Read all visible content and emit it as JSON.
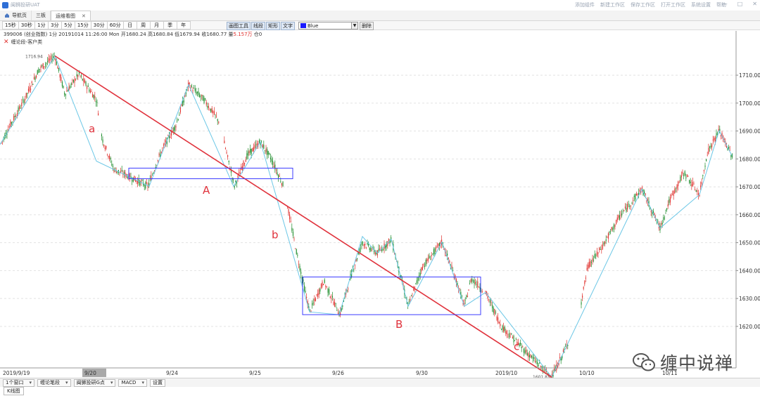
{
  "titlebar": {
    "app_title": "闽狮投研UAT",
    "menu": [
      "添加组件",
      "新建工作区",
      "保存工作区",
      "打开工作区",
      "系统设置",
      "帮助"
    ],
    "window_buttons": [
      "—",
      "□",
      "✕"
    ]
  },
  "tabs": [
    {
      "label": "导航页",
      "icon": "home-icon"
    },
    {
      "label": "三板",
      "icon": ""
    },
    {
      "label": "运维看图",
      "icon": "",
      "active": true,
      "close": "✕"
    }
  ],
  "toolbar": {
    "periods": [
      "15秒",
      "30秒",
      "1分",
      "3分",
      "5分",
      "15分",
      "30分",
      "60分",
      "日",
      "周",
      "月",
      "季",
      "年"
    ],
    "draw_tools": [
      "画图工具",
      "线段",
      "矩形",
      "文字"
    ],
    "color": {
      "label": "Blue",
      "hex": "#1a1aff"
    },
    "delete_label": "删除"
  },
  "info": {
    "text": "399006 (创业指数) 1分 20191014 11:26:00 Mon  开1680.24 高1680.84 低1679.94 收1680.77 量",
    "volume": "5.157万",
    "suffix": " 仓0"
  },
  "indicator": {
    "close_mark": "✕",
    "label": "缠论段-客户类"
  },
  "chart_data": {
    "type": "candlestick",
    "ylim": [
      1600,
      1720
    ],
    "yticks": [
      "1710.00",
      "1700.00",
      "1690.00",
      "1680.00",
      "1670.00",
      "1660.00",
      "1650.00",
      "1640.00",
      "1630.00",
      "1620.00"
    ],
    "ytick_values": [
      1710,
      1700,
      1690,
      1680,
      1670,
      1660,
      1650,
      1640,
      1630,
      1620
    ],
    "xticks": [
      "2019/9/19",
      "9/20",
      "9/24",
      "9/25",
      "9/26",
      "9/30",
      "2019/10",
      "10/10",
      "10/11"
    ],
    "high_label": "1716.94",
    "low_label": "1601.81",
    "wave_labels": [
      "a",
      "A",
      "b",
      "B",
      "c"
    ],
    "colors": {
      "up": "#e0322f",
      "down": "#1c8c2a",
      "stroke": "#6cc7e6",
      "trend": "#e0323c",
      "box": "#3c3cff"
    },
    "price_path": [
      [
        0,
        1684.8
      ],
      [
        15,
        1692.4
      ],
      [
        35,
        1701.4
      ],
      [
        55,
        1712.0
      ],
      [
        78,
        1716.9
      ],
      [
        92,
        1703.3
      ],
      [
        112,
        1710.3
      ],
      [
        137,
        1701.3
      ],
      [
        145,
        1687.4
      ],
      [
        162,
        1676.2
      ],
      [
        180,
        1674.2
      ],
      [
        210,
        1670.2
      ],
      [
        230,
        1683.2
      ],
      [
        250,
        1692.2
      ],
      [
        268,
        1706.6
      ],
      [
        290,
        1701.2
      ],
      [
        312,
        1693.2
      ],
      [
        320,
        1684.2
      ],
      [
        333,
        1670.2
      ],
      [
        351,
        1681.2
      ],
      [
        370,
        1686.2
      ],
      [
        385,
        1680.2
      ],
      [
        403,
        1670.2
      ],
      [
        420,
        1648.2
      ],
      [
        440,
        1625.2
      ],
      [
        460,
        1636.2
      ],
      [
        483,
        1624.2
      ],
      [
        500,
        1639.2
      ],
      [
        515,
        1650.2
      ],
      [
        536,
        1646.2
      ],
      [
        556,
        1651.2
      ],
      [
        580,
        1627.2
      ],
      [
        600,
        1641.2
      ],
      [
        628,
        1650.2
      ],
      [
        650,
        1635.2
      ],
      [
        660,
        1627.2
      ],
      [
        670,
        1637.2
      ],
      [
        690,
        1632.2
      ],
      [
        712,
        1620.2
      ],
      [
        735,
        1614.2
      ],
      [
        758,
        1608.2
      ],
      [
        784,
        1601.8
      ],
      [
        800,
        1610.2
      ],
      [
        822,
        1623.2
      ],
      [
        835,
        1641.2
      ],
      [
        855,
        1648.2
      ],
      [
        880,
        1659.2
      ],
      [
        912,
        1669.2
      ],
      [
        938,
        1655.2
      ],
      [
        950,
        1664.2
      ],
      [
        972,
        1675.2
      ],
      [
        994,
        1667.2
      ],
      [
        1005,
        1682.2
      ],
      [
        1022,
        1690.2
      ],
      [
        1040,
        1681.2
      ]
    ],
    "stroke_points": [
      [
        0,
        1685.2
      ],
      [
        78,
        1716.9
      ],
      [
        137,
        1679.2
      ],
      [
        212,
        1670.2
      ],
      [
        268,
        1706.6
      ],
      [
        332,
        1670.2
      ],
      [
        370,
        1686.2
      ],
      [
        440,
        1625.2
      ],
      [
        482,
        1624.2
      ],
      [
        515,
        1652.2
      ],
      [
        536,
        1646.2
      ],
      [
        556,
        1651.2
      ],
      [
        580,
        1627.2
      ],
      [
        628,
        1650.2
      ],
      [
        660,
        1627.2
      ],
      [
        690,
        1632.2
      ],
      [
        784,
        1601.8
      ],
      [
        912,
        1669.2
      ],
      [
        938,
        1655.2
      ],
      [
        994,
        1667.2
      ],
      [
        1022,
        1690.2
      ],
      [
        1040,
        1681.2
      ]
    ],
    "trend_line": [
      [
        78,
        1716.9
      ],
      [
        784,
        1601.8
      ]
    ],
    "boxes": [
      {
        "label": "A",
        "x": [
          183,
          416
        ],
        "y": [
          1672.9,
          1676.7
        ]
      },
      {
        "label": "B",
        "x": [
          430,
          683
        ],
        "y": [
          1624.2,
          1637.7
        ]
      }
    ],
    "wave_label_points": [
      [
        126,
        1689.5
      ],
      [
        288,
        1667.5
      ],
      [
        386,
        1651.5
      ],
      [
        562,
        1619.5
      ],
      [
        730,
        1611.5
      ]
    ]
  },
  "bottombar": {
    "dropdowns": [
      "1个窗口",
      "缠论笔段",
      "闽狮投研G点",
      "MACD"
    ],
    "settings": "设置",
    "caret": "▾",
    "kline_tab": "K线图"
  },
  "watermark": {
    "text": "缠中说禅"
  }
}
